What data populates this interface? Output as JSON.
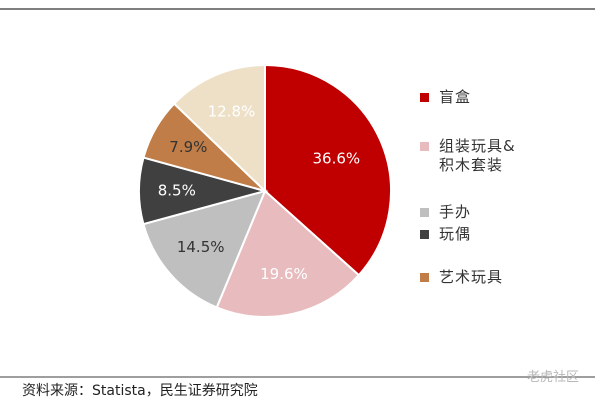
{
  "chart_data": {
    "type": "pie",
    "categories": [
      "盲盒",
      "组装玩具&\n积木套装",
      "手办",
      "玩偶",
      "艺术玩具",
      null
    ],
    "values": [
      36.6,
      19.6,
      14.5,
      8.5,
      7.9,
      12.8
    ],
    "value_labels": [
      "36.6%",
      "19.6%",
      "14.5%",
      "8.5%",
      "7.9%",
      "12.8%"
    ],
    "colors": [
      "#c00000",
      "#e8bcbe",
      "#bfbfbf",
      "#404040",
      "#c17d47",
      "#ede0c6"
    ],
    "legend": "right",
    "source": "资料来源：Statista，民生证券研究院",
    "watermark": "老虎社区"
  }
}
